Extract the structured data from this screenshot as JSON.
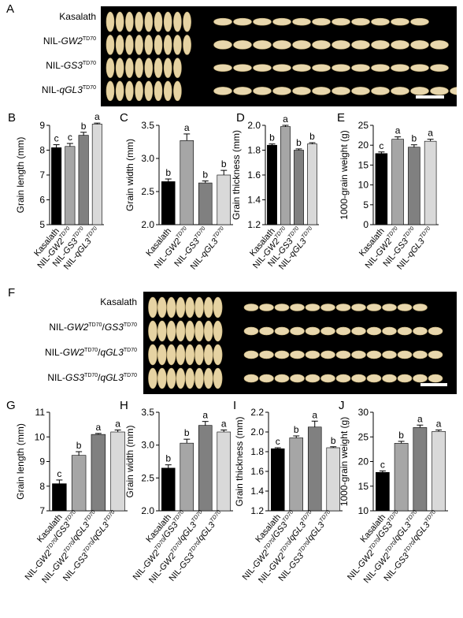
{
  "panel_letters": [
    "A",
    "B",
    "C",
    "D",
    "E",
    "F",
    "G",
    "H",
    "I",
    "J"
  ],
  "figure_A": {
    "rows": [
      {
        "name": "Kasalath",
        "gene": "",
        "sup": ""
      },
      {
        "name": "NIL-",
        "gene": "GW2",
        "sup": "TD70"
      },
      {
        "name": "NIL-",
        "gene": "GS3",
        "sup": "TD70"
      },
      {
        "name": "NIL-",
        "gene": "qGL3",
        "sup": "TD70"
      }
    ]
  },
  "figure_F": {
    "rows": [
      {
        "name": "Kasalath",
        "parts": []
      },
      {
        "name": "NIL-",
        "parts": [
          {
            "t": "GW2",
            "i": true
          },
          {
            "t": "TD70",
            "s": true
          },
          {
            "t": "/"
          },
          {
            "t": "GS3",
            "i": true
          },
          {
            "t": "TD70",
            "s": true
          }
        ]
      },
      {
        "name": "NIL-",
        "parts": [
          {
            "t": "GW2",
            "i": true
          },
          {
            "t": "TD70",
            "s": true
          },
          {
            "t": "/"
          },
          {
            "t": "qGL3",
            "i": true
          },
          {
            "t": "TD70",
            "s": true
          }
        ]
      },
      {
        "name": "NIL-",
        "parts": [
          {
            "t": "GS3",
            "i": true
          },
          {
            "t": "TD70",
            "s": true
          },
          {
            "t": "/"
          },
          {
            "t": "qGL3",
            "i": true
          },
          {
            "t": "TD70",
            "s": true
          }
        ]
      }
    ]
  },
  "chart_data": [
    {
      "id": "B",
      "type": "bar",
      "ylabel": "Grain length (mm)",
      "ylim": [
        5,
        9
      ],
      "yticks": [
        5,
        6,
        7,
        8,
        9
      ],
      "categories": [
        "Kasalath",
        "NIL-GW2TD70",
        "NIL-GS3TD70",
        "NIL-qGL3TD70"
      ],
      "values": [
        8.1,
        8.15,
        8.6,
        9.05
      ],
      "errors": [
        0.12,
        0.12,
        0.12,
        0.04
      ],
      "letters": [
        "c",
        "c",
        "b",
        "a"
      ],
      "colors": [
        "#000000",
        "#a6a6a6",
        "#808080",
        "#d9d9d9"
      ]
    },
    {
      "id": "C",
      "type": "bar",
      "ylabel": "Grain width (mm)",
      "ylim": [
        2.0,
        3.5
      ],
      "yticks": [
        2.0,
        2.5,
        3.0,
        3.5
      ],
      "categories": [
        "Kasalath",
        "NIL-GW2TD70",
        "NIL-GS3TD70",
        "NIL-qGL3TD70"
      ],
      "values": [
        2.65,
        3.27,
        2.63,
        2.75
      ],
      "errors": [
        0.04,
        0.1,
        0.03,
        0.07
      ],
      "letters": [
        "b",
        "a",
        "b",
        "b"
      ],
      "colors": [
        "#000000",
        "#a6a6a6",
        "#808080",
        "#d9d9d9"
      ]
    },
    {
      "id": "D",
      "type": "bar",
      "ylabel": "Grain thickness (mm)",
      "ylim": [
        1.2,
        2.0
      ],
      "yticks": [
        1.2,
        1.4,
        1.6,
        1.8,
        2.0
      ],
      "categories": [
        "Kasalath",
        "NIL-GW2TD70",
        "NIL-GS3TD70",
        "NIL-qGL3TD70"
      ],
      "values": [
        1.84,
        1.99,
        1.8,
        1.85
      ],
      "errors": [
        0.01,
        0.01,
        0.01,
        0.01
      ],
      "letters": [
        "b",
        "a",
        "b",
        "b"
      ],
      "colors": [
        "#000000",
        "#a6a6a6",
        "#808080",
        "#d9d9d9"
      ]
    },
    {
      "id": "E",
      "type": "bar",
      "ylabel": "1000-grain weight (g)",
      "ylim": [
        0,
        25
      ],
      "yticks": [
        0,
        5,
        10,
        15,
        20,
        25
      ],
      "categories": [
        "Kasalath",
        "NIL-GW2TD70",
        "NIL-GS3TD70",
        "NIL-qGL3TD70"
      ],
      "values": [
        17.9,
        21.5,
        19.5,
        21.0
      ],
      "errors": [
        0.4,
        0.6,
        0.6,
        0.5
      ],
      "letters": [
        "c",
        "a",
        "b",
        "a"
      ],
      "colors": [
        "#000000",
        "#a6a6a6",
        "#808080",
        "#d9d9d9"
      ]
    },
    {
      "id": "G",
      "type": "bar",
      "ylabel": "Grain length (mm)",
      "ylim": [
        7,
        11
      ],
      "yticks": [
        7,
        8,
        9,
        10,
        11
      ],
      "categories": [
        "Kasalath",
        "NIL-GW2TD70/GS3TD70",
        "NIL-GW2TD70/qGL3TD70",
        "NIL-GS3TD70/qGL3TD70"
      ],
      "values": [
        8.1,
        9.25,
        10.1,
        10.2
      ],
      "errors": [
        0.15,
        0.15,
        0.04,
        0.08
      ],
      "letters": [
        "c",
        "b",
        "a",
        "a"
      ],
      "colors": [
        "#000000",
        "#a6a6a6",
        "#808080",
        "#d9d9d9"
      ]
    },
    {
      "id": "H",
      "type": "bar",
      "ylabel": "Grain width (mm)",
      "ylim": [
        2.0,
        3.5
      ],
      "yticks": [
        2.0,
        2.5,
        3.0,
        3.5
      ],
      "categories": [
        "Kasalath",
        "NIL-GW2TD70/GS3TD70",
        "NIL-GW2TD70/qGL3TD70",
        "NIL-GS3TD70/qGL3TD70"
      ],
      "values": [
        2.65,
        3.03,
        3.3,
        3.2
      ],
      "errors": [
        0.05,
        0.06,
        0.06,
        0.03
      ],
      "letters": [
        "b",
        "b",
        "a",
        "a"
      ],
      "colors": [
        "#000000",
        "#a6a6a6",
        "#808080",
        "#d9d9d9"
      ]
    },
    {
      "id": "I",
      "type": "bar",
      "ylabel": "Grain thickness (mm)",
      "ylim": [
        1.2,
        2.2
      ],
      "yticks": [
        1.2,
        1.4,
        1.6,
        1.8,
        2.0,
        2.2
      ],
      "categories": [
        "Kasalath",
        "NIL-GW2TD70/GS3TD70",
        "NIL-GW2TD70/qGL3TD70",
        "NIL-GS3TD70/qGL3TD70"
      ],
      "values": [
        1.83,
        1.94,
        2.05,
        1.84
      ],
      "errors": [
        0.01,
        0.02,
        0.06,
        0.01
      ],
      "letters": [
        "c",
        "b",
        "a",
        "b"
      ],
      "colors": [
        "#000000",
        "#a6a6a6",
        "#808080",
        "#d9d9d9"
      ]
    },
    {
      "id": "J",
      "type": "bar",
      "ylabel": "1000-grain weight (g)",
      "ylim": [
        10,
        30
      ],
      "yticks": [
        10,
        15,
        20,
        25,
        30
      ],
      "categories": [
        "Kasalath",
        "NIL-GW2TD70/GS3TD70",
        "NIL-GW2TD70/qGL3TD70",
        "NIL-GS3TD70/qGL3TD70"
      ],
      "values": [
        17.8,
        23.7,
        26.9,
        26.1
      ],
      "errors": [
        0.3,
        0.4,
        0.5,
        0.3
      ],
      "letters": [
        "c",
        "b",
        "a",
        "a"
      ],
      "colors": [
        "#000000",
        "#a6a6a6",
        "#808080",
        "#d9d9d9"
      ]
    }
  ]
}
